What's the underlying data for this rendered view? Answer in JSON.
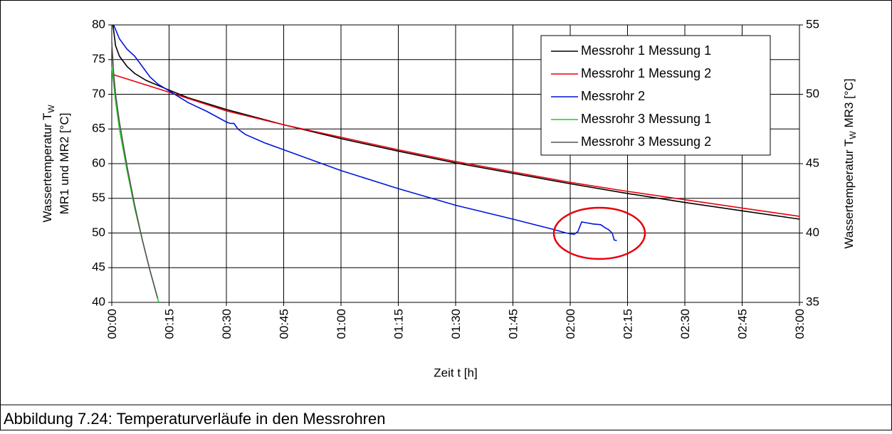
{
  "chart_data": {
    "type": "line",
    "caption": "Abbildung 7.24: Temperaturverläufe in den Messrohren",
    "xlabel": "Zeit t [h]",
    "ylabel": [
      "Wassertemperatur T",
      "W",
      "MR1 und MR2 [°C]"
    ],
    "y2label": [
      "Wassertemperatur T",
      "W",
      " MR3 [°C]"
    ],
    "xlim": [
      0,
      180
    ],
    "xticks": [
      {
        "value": 0,
        "label": "00:00"
      },
      {
        "value": 15,
        "label": "00:15"
      },
      {
        "value": 30,
        "label": "00:30"
      },
      {
        "value": 45,
        "label": "00:45"
      },
      {
        "value": 60,
        "label": "01:00"
      },
      {
        "value": 75,
        "label": "01:15"
      },
      {
        "value": 90,
        "label": "01:30"
      },
      {
        "value": 105,
        "label": "01:45"
      },
      {
        "value": 120,
        "label": "02:00"
      },
      {
        "value": 135,
        "label": "02:15"
      },
      {
        "value": 150,
        "label": "02:30"
      },
      {
        "value": 165,
        "label": "02:45"
      },
      {
        "value": 180,
        "label": "03:00"
      }
    ],
    "ylim": [
      40,
      80
    ],
    "yticks": [
      40,
      45,
      50,
      55,
      60,
      65,
      70,
      75,
      80
    ],
    "y2lim": [
      35,
      55
    ],
    "y2ticks": [
      35,
      40,
      45,
      50,
      55
    ],
    "grid": true,
    "legend": "upper right",
    "series": [
      {
        "name": "Messrohr 1 Messung 1",
        "color": "#000000",
        "x": [
          0.3,
          1,
          2,
          4,
          6,
          9,
          12,
          15,
          20,
          30,
          45,
          60,
          75,
          90,
          105,
          120,
          135,
          150,
          165,
          180
        ],
        "values": [
          80,
          77,
          75.5,
          74,
          73,
          72,
          71.3,
          70.6,
          69.5,
          67.8,
          65.6,
          63.6,
          61.8,
          60.1,
          58.6,
          57.1,
          55.7,
          54.4,
          53.2,
          52
        ]
      },
      {
        "name": "Messrohr 1 Messung 2",
        "color": "#e8000b",
        "x": [
          0,
          15,
          30,
          45,
          60,
          75,
          90,
          105,
          120,
          135,
          150,
          165,
          180
        ],
        "values": [
          72.9,
          70.3,
          67.6,
          65.6,
          63.8,
          62,
          60.3,
          58.8,
          57.3,
          56,
          54.8,
          53.6,
          52.4
        ]
      },
      {
        "name": "Messrohr 2",
        "color": "#0014dc",
        "x": [
          0.5,
          2,
          4,
          6,
          8,
          10,
          12,
          15,
          20,
          25,
          30,
          31,
          32,
          33,
          35,
          40,
          45,
          60,
          75,
          90,
          105,
          115,
          119,
          121,
          122,
          123,
          124,
          126,
          128,
          129,
          130,
          131,
          131.5,
          132.2
        ],
        "values": [
          80,
          78,
          76.5,
          75.5,
          74,
          72.5,
          71.5,
          70.5,
          68.8,
          67.5,
          66,
          65.8,
          65.8,
          65,
          64.2,
          63,
          62,
          59,
          56.4,
          54,
          52,
          50.6,
          50,
          49.8,
          50.2,
          51.6,
          51.5,
          51.3,
          51.2,
          50.8,
          50.5,
          50,
          49,
          48.9
        ]
      },
      {
        "name": "Messrohr 3 Messung 1",
        "color": "#22cc22",
        "axis": "y2",
        "x": [
          0,
          1,
          2,
          4,
          6,
          8,
          10,
          12.3
        ],
        "values": [
          52,
          49.5,
          47.5,
          44.5,
          41.8,
          39.5,
          37.3,
          35
        ]
      },
      {
        "name": "Messrohr 3 Messung 2",
        "color": "#555555",
        "axis": "y2",
        "x": [
          0,
          0.5,
          1,
          2,
          4,
          6,
          8,
          10,
          12
        ],
        "values": [
          53.8,
          51.5,
          50,
          48,
          44.8,
          42,
          39.5,
          37.3,
          35.3
        ]
      }
    ]
  }
}
